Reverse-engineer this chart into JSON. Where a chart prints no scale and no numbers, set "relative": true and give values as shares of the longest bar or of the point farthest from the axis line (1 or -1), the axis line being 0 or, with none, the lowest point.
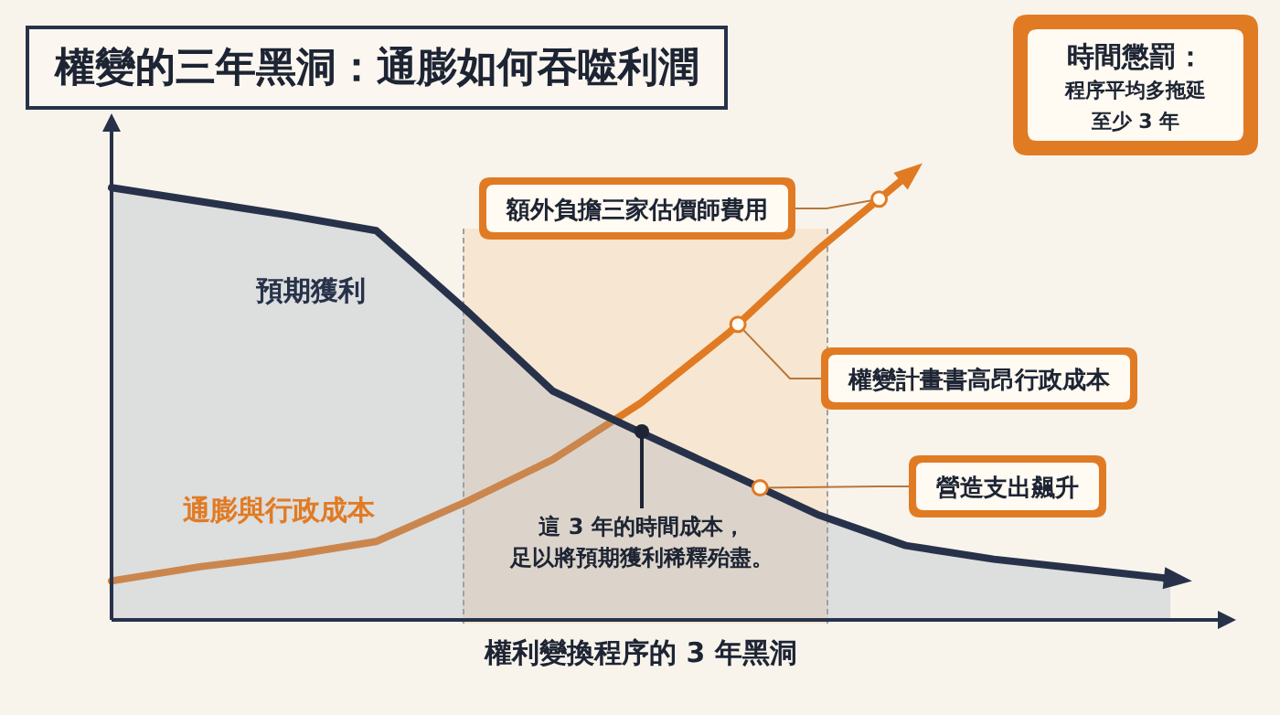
{
  "chart_data": {
    "type": "line",
    "title": "權變的三年黑洞：通膨如何吞噬利潤",
    "xlabel": "權利變換程序的 3 年黑洞",
    "relative": true,
    "grid": false,
    "legend": false,
    "marker": "none",
    "line_style": "solid",
    "categories": [
      null,
      null,
      null,
      null,
      null,
      null,
      null,
      null,
      null,
      null,
      null,
      null,
      null
    ],
    "series": [
      {
        "name": "預期獲利",
        "type": "area",
        "color": "#27324a",
        "values": [
          0.976,
          0.945,
          0.914,
          0.879,
          0.703,
          0.517,
          0.423,
          0.331,
          0.238,
          0.168,
          0.137,
          0.115,
          0.093
        ]
      },
      {
        "name": "通膨與行政成本",
        "color": "#e07b24",
        "values": [
          0.088,
          0.12,
          0.145,
          0.177,
          0.265,
          0.362,
          0.49,
          0.649,
          0.835,
          1,
          null,
          null,
          null
        ]
      }
    ],
    "annotations": [
      "額外負擔三家估價師費用",
      "權變計畫書高昂行政成本",
      "營造支出飆升",
      "這 3 年的時間成本，足以將預期獲利稀釋殆盡。",
      "時間懲罰：程序平均多拖延至少 3 年"
    ]
  }
}
